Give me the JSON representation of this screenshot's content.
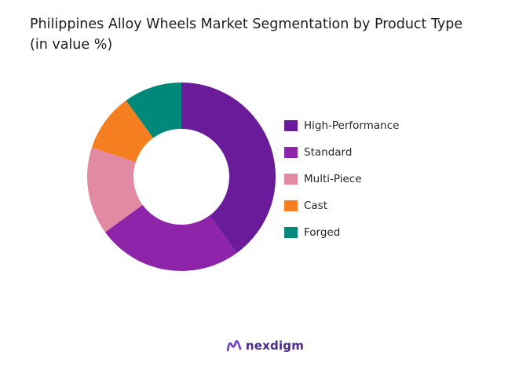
{
  "chart_data": {
    "type": "pie",
    "variant": "donut",
    "title": "Philippines Alloy Wheels Market Segmentation by Product Type",
    "subtitle": "(in value %)",
    "legend_position": "right",
    "series": [
      {
        "name": "High-Performance",
        "value": 40,
        "color": "#6a1b9a"
      },
      {
        "name": "Standard",
        "value": 25,
        "color": "#8e24aa"
      },
      {
        "name": "Multi-Piece",
        "value": 15,
        "color": "#e28aa4"
      },
      {
        "name": "Cast",
        "value": 10,
        "color": "#f47e20"
      },
      {
        "name": "Forged",
        "value": 10,
        "color": "#00897b"
      }
    ]
  },
  "brand": {
    "name": "nexdigm",
    "color": "#4b2a8c",
    "icon": "nexdigm-logo-icon"
  }
}
